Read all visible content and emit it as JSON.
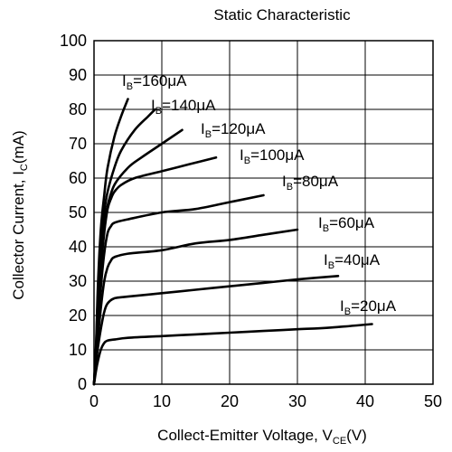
{
  "chart_data": {
    "type": "line",
    "title": "Static  Characteristic",
    "xlabel": {
      "main": "Collect-Emitter Voltage, V",
      "sub": "CE",
      "unit": "(V)"
    },
    "ylabel": {
      "main": "Collector Current, I",
      "sub": "C",
      "unit": "(mA)"
    },
    "xlim": [
      0,
      50
    ],
    "ylim": [
      0,
      100
    ],
    "x_ticks": [
      "0",
      "10",
      "20",
      "30",
      "40",
      "50"
    ],
    "y_ticks": [
      "0",
      "10",
      "20",
      "30",
      "40",
      "50",
      "60",
      "70",
      "80",
      "90",
      "100"
    ],
    "grid": true,
    "series": [
      {
        "name": "160μA",
        "points": [
          [
            0,
            0
          ],
          [
            0.3,
            12
          ],
          [
            0.6,
            30
          ],
          [
            1,
            45
          ],
          [
            1.5,
            55
          ],
          [
            2,
            63
          ],
          [
            3,
            72
          ],
          [
            4,
            78
          ],
          [
            5,
            83
          ]
        ]
      },
      {
        "name": "140μA",
        "points": [
          [
            0,
            0
          ],
          [
            0.3,
            11
          ],
          [
            0.6,
            27
          ],
          [
            1,
            40
          ],
          [
            1.5,
            50
          ],
          [
            2,
            56
          ],
          [
            3,
            63
          ],
          [
            4,
            68
          ],
          [
            6,
            74
          ],
          [
            8,
            78
          ],
          [
            9,
            80
          ]
        ]
      },
      {
        "name": "120μA",
        "points": [
          [
            0,
            0
          ],
          [
            0.3,
            10
          ],
          [
            0.6,
            24
          ],
          [
            1,
            36
          ],
          [
            1.5,
            46
          ],
          [
            2,
            52
          ],
          [
            3,
            58
          ],
          [
            5,
            63
          ],
          [
            7,
            66
          ],
          [
            10,
            70
          ],
          [
            13,
            74
          ]
        ]
      },
      {
        "name": "100μA",
        "points": [
          [
            0,
            0
          ],
          [
            0.3,
            9
          ],
          [
            0.6,
            21
          ],
          [
            1,
            33
          ],
          [
            1.5,
            44
          ],
          [
            2,
            51
          ],
          [
            2.5,
            54
          ],
          [
            3,
            56
          ],
          [
            4,
            58
          ],
          [
            6,
            60
          ],
          [
            10,
            62
          ],
          [
            14,
            64
          ],
          [
            18,
            66
          ]
        ]
      },
      {
        "name": "80μA",
        "points": [
          [
            0,
            0
          ],
          [
            0.3,
            8
          ],
          [
            0.6,
            18
          ],
          [
            1,
            28
          ],
          [
            1.5,
            38
          ],
          [
            2,
            44
          ],
          [
            2.5,
            46
          ],
          [
            3,
            47
          ],
          [
            5,
            48
          ],
          [
            10,
            50
          ],
          [
            15,
            51
          ],
          [
            20,
            53
          ],
          [
            25,
            55
          ]
        ]
      },
      {
        "name": "60μA",
        "points": [
          [
            0,
            0
          ],
          [
            0.3,
            7
          ],
          [
            0.6,
            14
          ],
          [
            1,
            22
          ],
          [
            1.5,
            30
          ],
          [
            2,
            34
          ],
          [
            2.5,
            36
          ],
          [
            3,
            37
          ],
          [
            5,
            38
          ],
          [
            10,
            39
          ],
          [
            15,
            41
          ],
          [
            20,
            42
          ],
          [
            25,
            43.5
          ],
          [
            30,
            45
          ]
        ]
      },
      {
        "name": "40μA",
        "points": [
          [
            0,
            0
          ],
          [
            0.3,
            6
          ],
          [
            0.6,
            11
          ],
          [
            1,
            16
          ],
          [
            1.5,
            21
          ],
          [
            2,
            23.5
          ],
          [
            3,
            25
          ],
          [
            5,
            25.5
          ],
          [
            10,
            26.5
          ],
          [
            15,
            27.5
          ],
          [
            20,
            28.5
          ],
          [
            25,
            29.5
          ],
          [
            30,
            30.5
          ],
          [
            36,
            31.5
          ]
        ]
      },
      {
        "name": "20μA",
        "points": [
          [
            0,
            0
          ],
          [
            0.3,
            4
          ],
          [
            0.6,
            7
          ],
          [
            1,
            10
          ],
          [
            1.5,
            12
          ],
          [
            2,
            12.7
          ],
          [
            3,
            13
          ],
          [
            5,
            13.5
          ],
          [
            10,
            14
          ],
          [
            15,
            14.5
          ],
          [
            20,
            15
          ],
          [
            25,
            15.5
          ],
          [
            30,
            16
          ],
          [
            35,
            16.5
          ],
          [
            41,
            17.5
          ]
        ]
      }
    ],
    "annotations": [
      {
        "prefix": "I",
        "sub": "B",
        "text": "=160μA"
      },
      {
        "prefix": "I",
        "sub": "B",
        "text": "=140μA"
      },
      {
        "prefix": "I",
        "sub": "B",
        "text": "=120μA"
      },
      {
        "prefix": "I",
        "sub": "B",
        "text": "=100μA"
      },
      {
        "prefix": "I",
        "sub": "B",
        "text": "=80μA"
      },
      {
        "prefix": "I",
        "sub": "B",
        "text": "=60μA"
      },
      {
        "prefix": "I",
        "sub": "B",
        "text": "=40μA"
      },
      {
        "prefix": "I",
        "sub": "B",
        "text": "=20μA"
      }
    ]
  }
}
